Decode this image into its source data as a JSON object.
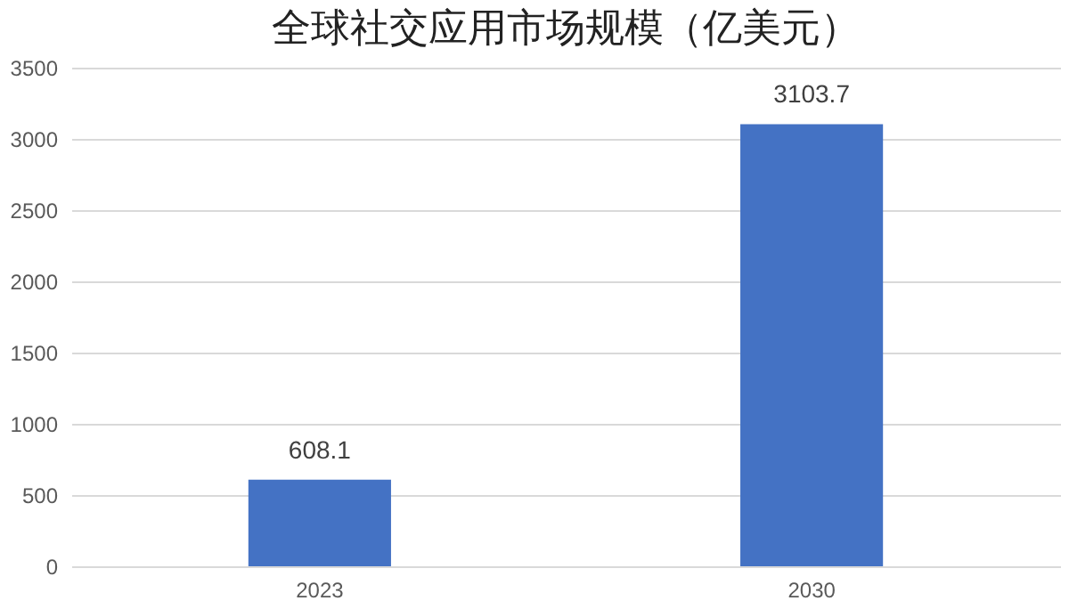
{
  "chart_data": {
    "type": "bar",
    "title": "全球社交应用市场规模（亿美元）",
    "categories": [
      "2023",
      "2030"
    ],
    "values": [
      608.1,
      3103.7
    ],
    "color": "#4472c4",
    "ylim": [
      0,
      3500
    ],
    "yticks": [
      0,
      500,
      1000,
      1500,
      2000,
      2500,
      3000,
      3500
    ],
    "grid": "y",
    "data_labels": true
  }
}
